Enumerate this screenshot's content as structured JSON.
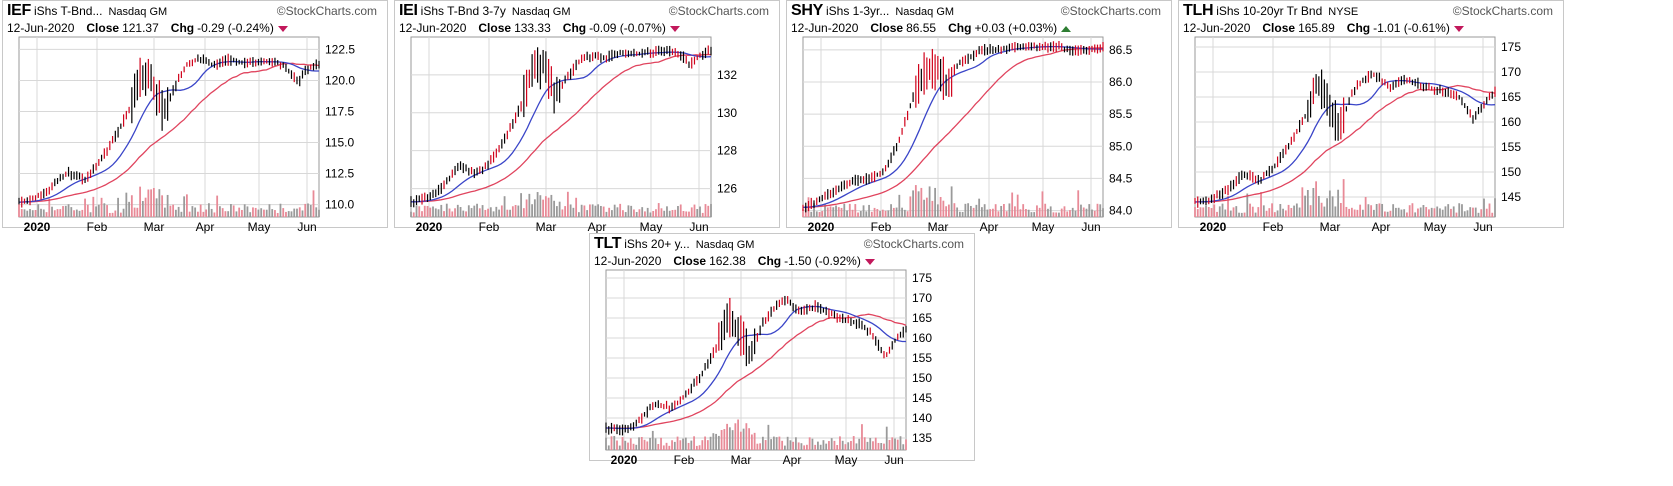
{
  "watermark": "©StockCharts.com",
  "colors": {
    "ma_short": "#3a45c8",
    "ma_long": "#e0445e",
    "up_candle": "#000000",
    "down_candle": "#d0021b",
    "vol_up": "#9a9a9a",
    "vol_down": "#e88a97",
    "grid": "#d8d8d8"
  },
  "x_tick_labels": [
    "2020",
    "Feb",
    "Mar",
    "Apr",
    "May",
    "Jun"
  ],
  "panels": [
    {
      "symbol": "IEF",
      "name": "iShs T-Bnd...",
      "exchange": "Nasdaq GM",
      "date": "12-Jun-2020",
      "close_label": "Close",
      "close": "121.37",
      "chg_label": "Chg",
      "chg": "-0.29 (-0.24%)",
      "direction": "down"
    },
    {
      "symbol": "IEI",
      "name": "iShs T-Bnd 3-7y",
      "exchange": "Nasdaq GM",
      "date": "12-Jun-2020",
      "close_label": "Close",
      "close": "133.33",
      "chg_label": "Chg",
      "chg": "-0.09 (-0.07%)",
      "direction": "down"
    },
    {
      "symbol": "SHY",
      "name": "iShs 1-3yr...",
      "exchange": "Nasdaq GM",
      "date": "12-Jun-2020",
      "close_label": "Close",
      "close": "86.55",
      "chg_label": "Chg",
      "chg": "+0.03 (+0.03%)",
      "direction": "up"
    },
    {
      "symbol": "TLH",
      "name": "iShs 10-20yr Tr Bnd",
      "exchange": "NYSE",
      "date": "12-Jun-2020",
      "close_label": "Close",
      "close": "165.89",
      "chg_label": "Chg",
      "chg": "-1.01 (-0.61%)",
      "direction": "down"
    },
    {
      "symbol": "TLT",
      "name": "iShs 20+ y...",
      "exchange": "Nasdaq GM",
      "date": "12-Jun-2020",
      "close_label": "Close",
      "close": "162.38",
      "chg_label": "Chg",
      "chg": "-1.50 (-0.92%)",
      "direction": "down"
    }
  ],
  "chart_data": [
    {
      "type": "line",
      "title": "IEF",
      "ylim": [
        109,
        123.5
      ],
      "y_ticks": [
        "110.0",
        "112.5",
        "115.0",
        "117.5",
        "120.0",
        "122.5"
      ],
      "y_tick_values": [
        110,
        112.5,
        115,
        117.5,
        120,
        122.5
      ],
      "series": [
        {
          "name": "IEF",
          "points": [
            [
              0,
              110.2
            ],
            [
              0.05,
              110.5
            ],
            [
              0.1,
              111.2
            ],
            [
              0.16,
              112.6
            ],
            [
              0.22,
              112.0
            ],
            [
              0.27,
              113.5
            ],
            [
              0.32,
              115.4
            ],
            [
              0.37,
              117.8
            ],
            [
              0.4,
              120.5
            ],
            [
              0.44,
              120.0
            ],
            [
              0.48,
              117.5
            ],
            [
              0.52,
              119.5
            ],
            [
              0.56,
              121.3
            ],
            [
              0.6,
              121.8
            ],
            [
              0.65,
              121.2
            ],
            [
              0.7,
              121.7
            ],
            [
              0.75,
              121.4
            ],
            [
              0.8,
              121.5
            ],
            [
              0.85,
              121.6
            ],
            [
              0.88,
              121.2
            ],
            [
              0.91,
              120.5
            ],
            [
              0.93,
              119.8
            ],
            [
              0.96,
              120.9
            ],
            [
              1,
              121.4
            ]
          ]
        }
      ]
    },
    {
      "type": "line",
      "title": "IEI",
      "ylim": [
        124.5,
        134
      ],
      "y_ticks": [
        "126",
        "128",
        "130",
        "132"
      ],
      "y_tick_values": [
        126,
        128,
        130,
        132
      ],
      "series": [
        {
          "name": "IEI",
          "points": [
            [
              0,
              125.3
            ],
            [
              0.05,
              125.5
            ],
            [
              0.1,
              126.0
            ],
            [
              0.16,
              127.2
            ],
            [
              0.22,
              126.8
            ],
            [
              0.27,
              127.5
            ],
            [
              0.32,
              128.8
            ],
            [
              0.37,
              130.5
            ],
            [
              0.4,
              132.0
            ],
            [
              0.44,
              132.5
            ],
            [
              0.48,
              130.8
            ],
            [
              0.52,
              131.8
            ],
            [
              0.56,
              132.7
            ],
            [
              0.6,
              133.0
            ],
            [
              0.65,
              132.9
            ],
            [
              0.7,
              133.2
            ],
            [
              0.75,
              133.1
            ],
            [
              0.8,
              133.2
            ],
            [
              0.85,
              133.3
            ],
            [
              0.88,
              133.1
            ],
            [
              0.91,
              132.9
            ],
            [
              0.93,
              132.5
            ],
            [
              0.96,
              133.0
            ],
            [
              1,
              133.3
            ]
          ]
        }
      ]
    },
    {
      "type": "line",
      "title": "SHY",
      "ylim": [
        83.9,
        86.7
      ],
      "y_ticks": [
        "84.0",
        "84.5",
        "85.0",
        "85.5",
        "86.0",
        "86.5"
      ],
      "y_tick_values": [
        84,
        84.5,
        85,
        85.5,
        86,
        86.5
      ],
      "series": [
        {
          "name": "SHY",
          "points": [
            [
              0,
              84.05
            ],
            [
              0.05,
              84.15
            ],
            [
              0.1,
              84.3
            ],
            [
              0.16,
              84.45
            ],
            [
              0.22,
              84.5
            ],
            [
              0.27,
              84.6
            ],
            [
              0.32,
              85.1
            ],
            [
              0.37,
              85.8
            ],
            [
              0.4,
              86.1
            ],
            [
              0.44,
              86.2
            ],
            [
              0.48,
              86.0
            ],
            [
              0.52,
              86.3
            ],
            [
              0.56,
              86.4
            ],
            [
              0.6,
              86.5
            ],
            [
              0.65,
              86.5
            ],
            [
              0.7,
              86.55
            ],
            [
              0.75,
              86.55
            ],
            [
              0.8,
              86.55
            ],
            [
              0.85,
              86.55
            ],
            [
              0.88,
              86.5
            ],
            [
              0.91,
              86.5
            ],
            [
              0.93,
              86.5
            ],
            [
              0.96,
              86.52
            ],
            [
              1,
              86.55
            ]
          ]
        }
      ]
    },
    {
      "type": "line",
      "title": "TLH",
      "ylim": [
        141,
        177
      ],
      "y_ticks": [
        "145",
        "150",
        "155",
        "160",
        "165",
        "170",
        "175"
      ],
      "y_tick_values": [
        145,
        150,
        155,
        160,
        165,
        170,
        175
      ],
      "series": [
        {
          "name": "TLH",
          "points": [
            [
              0,
              144.0
            ],
            [
              0.05,
              144.5
            ],
            [
              0.1,
              146.0
            ],
            [
              0.16,
              149.5
            ],
            [
              0.22,
              148.5
            ],
            [
              0.27,
              151.5
            ],
            [
              0.32,
              156.0
            ],
            [
              0.37,
              161.5
            ],
            [
              0.4,
              168.0
            ],
            [
              0.44,
              165.0
            ],
            [
              0.48,
              158.0
            ],
            [
              0.52,
              165.5
            ],
            [
              0.56,
              168.5
            ],
            [
              0.6,
              169.5
            ],
            [
              0.65,
              167.0
            ],
            [
              0.7,
              168.5
            ],
            [
              0.75,
              167.5
            ],
            [
              0.8,
              166.5
            ],
            [
              0.85,
              166.0
            ],
            [
              0.88,
              165.0
            ],
            [
              0.91,
              162.5
            ],
            [
              0.93,
              160.5
            ],
            [
              0.96,
              163.5
            ],
            [
              1,
              165.9
            ]
          ]
        }
      ]
    },
    {
      "type": "line",
      "title": "TLT",
      "ylim": [
        132,
        177
      ],
      "y_ticks": [
        "135",
        "140",
        "145",
        "150",
        "155",
        "160",
        "165",
        "170",
        "175"
      ],
      "y_tick_values": [
        135,
        140,
        145,
        150,
        155,
        160,
        165,
        170,
        175
      ],
      "series": [
        {
          "name": "TLT",
          "points": [
            [
              0,
              137.5
            ],
            [
              0.05,
              137.0
            ],
            [
              0.1,
              138.5
            ],
            [
              0.16,
              143.5
            ],
            [
              0.22,
              142.5
            ],
            [
              0.27,
              146.0
            ],
            [
              0.32,
              151.0
            ],
            [
              0.37,
              158.0
            ],
            [
              0.4,
              166.0
            ],
            [
              0.44,
              162.0
            ],
            [
              0.48,
              155.0
            ],
            [
              0.52,
              163.5
            ],
            [
              0.56,
              167.5
            ],
            [
              0.6,
              169.5
            ],
            [
              0.65,
              166.5
            ],
            [
              0.7,
              168.0
            ],
            [
              0.75,
              166.0
            ],
            [
              0.8,
              164.5
            ],
            [
              0.85,
              163.5
            ],
            [
              0.88,
              161.5
            ],
            [
              0.91,
              158.0
            ],
            [
              0.93,
              155.0
            ],
            [
              0.96,
              159.0
            ],
            [
              1,
              162.4
            ]
          ]
        }
      ]
    }
  ]
}
